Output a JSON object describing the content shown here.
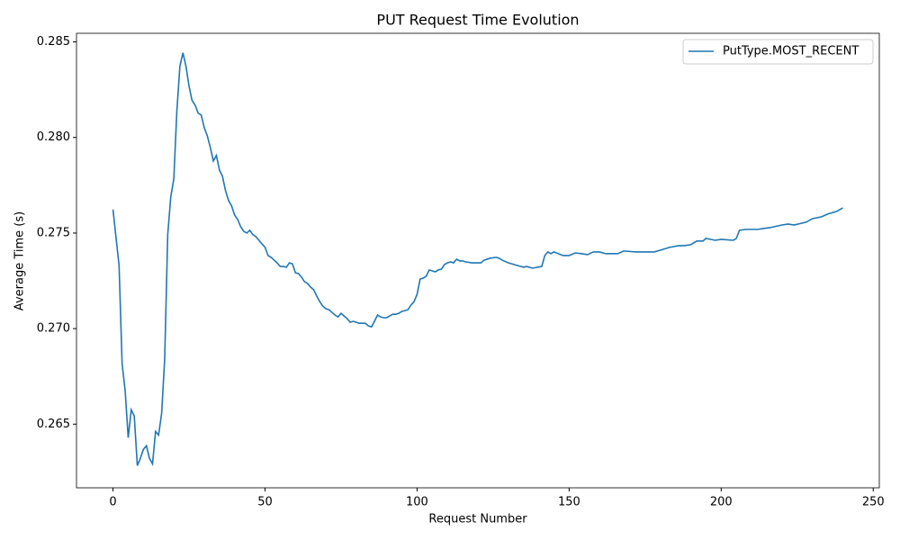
{
  "chart_data": {
    "type": "line",
    "title": "PUT Request Time Evolution",
    "x_label": "Request Number",
    "y_label": "Average Time (s)",
    "x": [
      0,
      1,
      2,
      3,
      4,
      5,
      6,
      7,
      8,
      9,
      10,
      11,
      12,
      13,
      14,
      15,
      16,
      17,
      18,
      19,
      20,
      21,
      22,
      23,
      24,
      25,
      26,
      27,
      28,
      29,
      30,
      31,
      32,
      33,
      34,
      35,
      36,
      37,
      38,
      39,
      40,
      41,
      42,
      43,
      44,
      45,
      46,
      47,
      48,
      49,
      50,
      51,
      52,
      53,
      54,
      55,
      56,
      57,
      58,
      59,
      60,
      61,
      62,
      63,
      64,
      65,
      66,
      67,
      68,
      69,
      70,
      71,
      72,
      73,
      74,
      75,
      76,
      77,
      78,
      79,
      80,
      81,
      82,
      83,
      84,
      85,
      86,
      87,
      88,
      89,
      90,
      91,
      92,
      93,
      94,
      95,
      96,
      97,
      98,
      99,
      100,
      101,
      102,
      103,
      104,
      105,
      106,
      107,
      108,
      109,
      110,
      111,
      112,
      113,
      114,
      115,
      116,
      118,
      121,
      122,
      124,
      126,
      127,
      128,
      130,
      133,
      135,
      136,
      138,
      141,
      142,
      143,
      144,
      145,
      148,
      150,
      152,
      154,
      156,
      158,
      160,
      162,
      166,
      168,
      172,
      178,
      180,
      183,
      186,
      188,
      190,
      192,
      194,
      195,
      198,
      200,
      204,
      205,
      206,
      208,
      212,
      214,
      216,
      220,
      222,
      224,
      228,
      230,
      233,
      235,
      238,
      240
    ],
    "series": [
      {
        "name": "PutType.MOST_RECENT",
        "color": "#1f77b4",
        "values": [
          0.27623,
          0.27476,
          0.2733,
          0.26816,
          0.26675,
          0.26429,
          0.26575,
          0.26542,
          0.26283,
          0.26321,
          0.26368,
          0.26387,
          0.26321,
          0.26292,
          0.26462,
          0.26443,
          0.26557,
          0.2684,
          0.27491,
          0.27689,
          0.27783,
          0.28137,
          0.28373,
          0.28443,
          0.28373,
          0.28269,
          0.28193,
          0.2817,
          0.28127,
          0.28118,
          0.28052,
          0.28009,
          0.27948,
          0.27877,
          0.27906,
          0.2783,
          0.27797,
          0.27722,
          0.2767,
          0.27642,
          0.27594,
          0.27571,
          0.27533,
          0.27509,
          0.275,
          0.27514,
          0.27491,
          0.27481,
          0.27462,
          0.27443,
          0.27425,
          0.27382,
          0.27373,
          0.27358,
          0.27344,
          0.27325,
          0.27325,
          0.27321,
          0.27344,
          0.27339,
          0.27292,
          0.27288,
          0.27269,
          0.27245,
          0.27236,
          0.27217,
          0.27203,
          0.2717,
          0.27141,
          0.27118,
          0.27104,
          0.27099,
          0.27085,
          0.27071,
          0.27061,
          0.2708,
          0.27066,
          0.27052,
          0.27033,
          0.27038,
          0.27033,
          0.27028,
          0.27028,
          0.27028,
          0.27014,
          0.27009,
          0.27038,
          0.27071,
          0.27061,
          0.27057,
          0.27057,
          0.27066,
          0.27075,
          0.27075,
          0.2708,
          0.2709,
          0.27094,
          0.27099,
          0.27123,
          0.27141,
          0.27179,
          0.27259,
          0.27264,
          0.27274,
          0.27307,
          0.27302,
          0.27297,
          0.27307,
          0.27311,
          0.27335,
          0.27344,
          0.27349,
          0.27344,
          0.27363,
          0.27354,
          0.27354,
          0.27349,
          0.27344,
          0.27344,
          0.27358,
          0.27368,
          0.27373,
          0.27368,
          0.27358,
          0.27344,
          0.2733,
          0.27321,
          0.27325,
          0.27316,
          0.27325,
          0.27382,
          0.27401,
          0.27392,
          0.27401,
          0.27382,
          0.27382,
          0.27396,
          0.27392,
          0.27387,
          0.27401,
          0.27401,
          0.27392,
          0.27392,
          0.27406,
          0.27401,
          0.27401,
          0.2741,
          0.27425,
          0.27434,
          0.27434,
          0.27439,
          0.27458,
          0.27458,
          0.27472,
          0.27462,
          0.27467,
          0.27462,
          0.27472,
          0.27514,
          0.27519,
          0.27519,
          0.27524,
          0.27528,
          0.27542,
          0.27547,
          0.27542,
          0.27557,
          0.27575,
          0.27585,
          0.27599,
          0.27613,
          0.27632
        ]
      }
    ],
    "xlim": [
      -12,
      252
    ],
    "ylim": [
      0.26167,
      0.28545
    ],
    "xticks": [
      0,
      50,
      100,
      150,
      200,
      250
    ],
    "yticks": [
      0.265,
      {
        "value": 0.27,
        "label": "0.270"
      },
      0.275,
      {
        "value": 0.28,
        "label": "0.280"
      },
      0.285
    ],
    "legend": "upper right"
  }
}
